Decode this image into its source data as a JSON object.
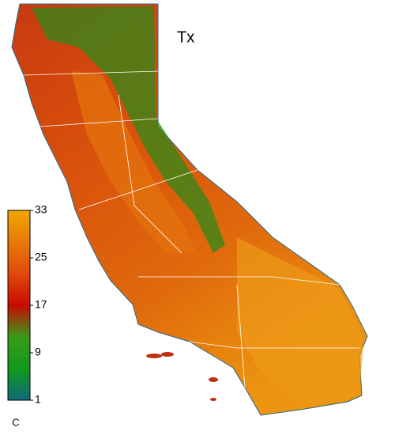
{
  "map": {
    "title": "Tx",
    "colorbar": {
      "min": 1,
      "max": 33,
      "ticks": [
        1,
        9,
        17,
        25,
        33
      ],
      "unit": "C",
      "colors": [
        "#0e6a78",
        "#119a1c",
        "#3a9a18",
        "#c80a00",
        "#e04a0a",
        "#e87a08",
        "#f0a800"
      ]
    }
  }
}
